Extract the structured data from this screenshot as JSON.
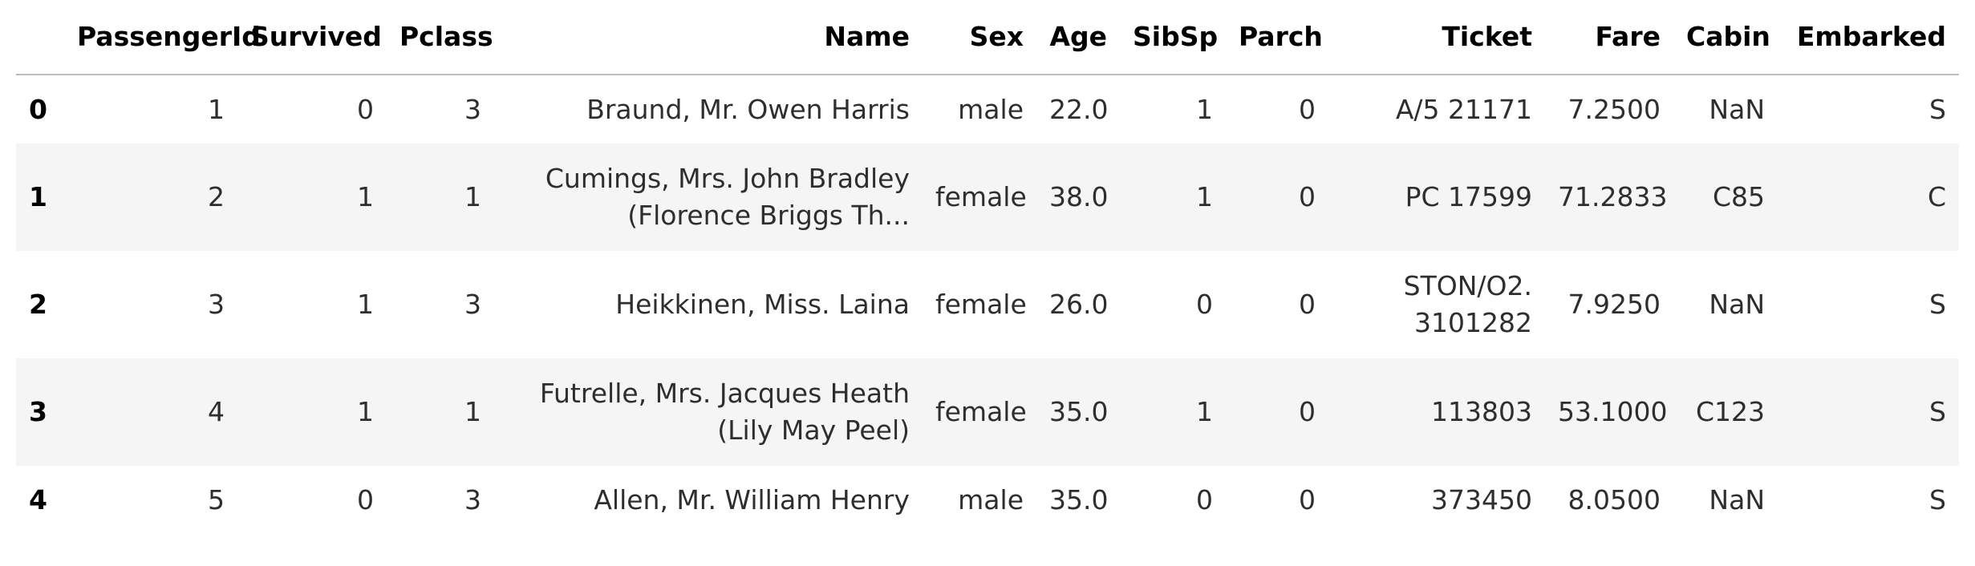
{
  "table": {
    "index_header": "",
    "columns": [
      "PassengerId",
      "Survived",
      "Pclass",
      "Name",
      "Sex",
      "Age",
      "SibSp",
      "Parch",
      "Ticket",
      "Fare",
      "Cabin",
      "Embarked"
    ],
    "rows": [
      {
        "index": "0",
        "cells": [
          "1",
          "0",
          "3",
          "Braund, Mr. Owen Harris",
          "male",
          "22.0",
          "1",
          "0",
          "A/5 21171",
          "7.2500",
          "NaN",
          "S"
        ]
      },
      {
        "index": "1",
        "cells": [
          "2",
          "1",
          "1",
          "Cumings, Mrs. John Bradley (Florence Briggs Th...",
          "female",
          "38.0",
          "1",
          "0",
          "PC 17599",
          "71.2833",
          "C85",
          "C"
        ]
      },
      {
        "index": "2",
        "cells": [
          "3",
          "1",
          "3",
          "Heikkinen, Miss. Laina",
          "female",
          "26.0",
          "0",
          "0",
          "STON/O2. 3101282",
          "7.9250",
          "NaN",
          "S"
        ]
      },
      {
        "index": "3",
        "cells": [
          "4",
          "1",
          "1",
          "Futrelle, Mrs. Jacques Heath (Lily May Peel)",
          "female",
          "35.0",
          "1",
          "0",
          "113803",
          "53.1000",
          "C123",
          "S"
        ]
      },
      {
        "index": "4",
        "cells": [
          "5",
          "0",
          "3",
          "Allen, Mr. William Henry",
          "male",
          "35.0",
          "0",
          "0",
          "373450",
          "8.0500",
          "NaN",
          "S"
        ]
      }
    ]
  },
  "colors": {
    "stripe": "#f5f5f5",
    "header_rule": "#bdbdbd",
    "text": "#000000"
  }
}
